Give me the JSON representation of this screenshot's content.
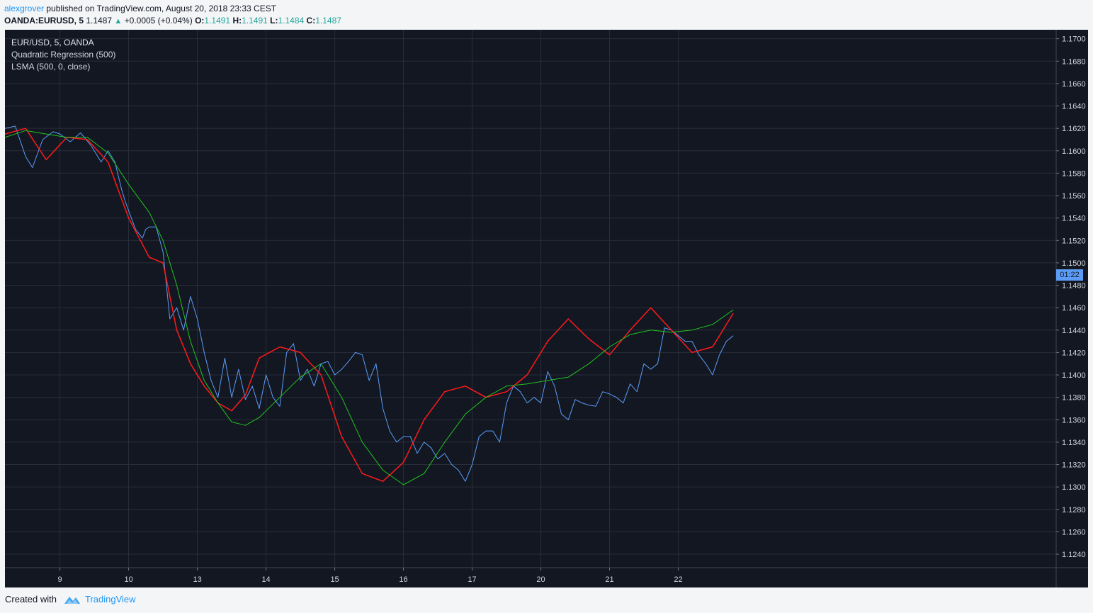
{
  "header": {
    "author": "alexgrover",
    "published": " published on TradingView.com, August 20, 2018 23:33 CEST",
    "symbol": "OANDA:EURUSD, 5",
    "last": "1.1487",
    "change": "+0.0005 (+0.04%)",
    "o_label": "O:",
    "o_val": "1.1491",
    "h_label": "H:",
    "h_val": "1.1491",
    "l_label": "L:",
    "l_val": "1.1484",
    "c_label": "C:",
    "c_val": "1.1487"
  },
  "legend": {
    "symbol": "EUR/USD, 5, OANDA",
    "ind1": "Quadratic Regression (500)",
    "ind2": "LSMA (500, 0, close)"
  },
  "price_tag": "01:22",
  "footer": {
    "created": "Created with",
    "brand": "TradingView"
  },
  "colors": {
    "background": "#131722",
    "grid": "#2a2e39",
    "price": "#5b9cf6",
    "quadratic_regression": "#ff1a1a",
    "lsma": "#1fc41f",
    "axis_text": "#d1d4dc"
  },
  "chart_data": {
    "type": "line",
    "title": "EUR/USD, 5, OANDA",
    "x_ticks": [
      "9",
      "10",
      "13",
      "14",
      "15",
      "16",
      "17",
      "20",
      "21",
      "22"
    ],
    "y_ticks": [
      "1.1700",
      "1.1680",
      "1.1660",
      "1.1640",
      "1.1620",
      "1.1600",
      "1.1580",
      "1.1560",
      "1.1540",
      "1.1520",
      "1.1500",
      "1.1480",
      "1.1460",
      "1.1440",
      "1.1420",
      "1.1400",
      "1.1380",
      "1.1360",
      "1.1340",
      "1.1320",
      "1.1300",
      "1.1280",
      "1.1260",
      "1.1240"
    ],
    "ylim": [
      1.1228,
      1.1708
    ],
    "xlim": [
      8.2,
      23.5
    ],
    "grid": true,
    "series": [
      {
        "name": "EUR/USD",
        "x": [
          8.2,
          8.35,
          8.5,
          8.6,
          8.75,
          8.9,
          9.0,
          9.15,
          9.3,
          9.45,
          9.6,
          9.7,
          9.8,
          9.9,
          9.95,
          10.1,
          10.2,
          10.25,
          10.3,
          10.4,
          10.5,
          10.6,
          10.7,
          10.8,
          10.9,
          11.0,
          11.1,
          11.2,
          11.3,
          11.4,
          11.5,
          11.6,
          11.7,
          11.8,
          11.9,
          12.0,
          12.1,
          12.2,
          12.3,
          12.4,
          12.5,
          12.6,
          12.7,
          12.8,
          12.9,
          13.0,
          13.1,
          13.2,
          13.3,
          13.4,
          13.5,
          13.6,
          13.7,
          13.8,
          13.9,
          14.0,
          14.1,
          14.2,
          14.3,
          14.4,
          14.5,
          14.6,
          14.7,
          14.8,
          14.9,
          15.0,
          15.1,
          15.2,
          15.3,
          15.4,
          15.5,
          15.6,
          15.7,
          15.8,
          15.9,
          16.0,
          16.1,
          16.2,
          16.3,
          16.4,
          16.5,
          16.6,
          16.7,
          16.8,
          16.9,
          17.0,
          17.1,
          17.2,
          17.3,
          17.4,
          17.5,
          17.6,
          17.7,
          17.8,
          17.9,
          18.0,
          18.1,
          18.2,
          18.3,
          18.4,
          18.5,
          18.6,
          18.7,
          18.8
        ],
        "values": [
          1.162,
          1.1622,
          1.1595,
          1.1585,
          1.161,
          1.1617,
          1.1615,
          1.1608,
          1.1616,
          1.1605,
          1.159,
          1.16,
          1.159,
          1.1565,
          1.1555,
          1.153,
          1.1522,
          1.153,
          1.1532,
          1.1532,
          1.151,
          1.145,
          1.146,
          1.144,
          1.147,
          1.145,
          1.142,
          1.1395,
          1.138,
          1.1415,
          1.138,
          1.1405,
          1.1378,
          1.139,
          1.137,
          1.14,
          1.138,
          1.1372,
          1.142,
          1.1428,
          1.1395,
          1.1405,
          1.139,
          1.141,
          1.1412,
          1.14,
          1.1405,
          1.1412,
          1.142,
          1.1418,
          1.1395,
          1.141,
          1.137,
          1.135,
          1.134,
          1.1345,
          1.1345,
          1.133,
          1.134,
          1.1335,
          1.1325,
          1.133,
          1.132,
          1.1315,
          1.1305,
          1.132,
          1.1345,
          1.135,
          1.135,
          1.134,
          1.1375,
          1.139,
          1.1385,
          1.1375,
          1.138,
          1.1375,
          1.1403,
          1.139,
          1.1365,
          1.136,
          1.1378,
          1.1375,
          1.1373,
          1.1372,
          1.1385,
          1.1383,
          1.138,
          1.1375,
          1.1392,
          1.1385,
          1.141,
          1.1405,
          1.141,
          1.1442,
          1.144,
          1.1435,
          1.143,
          1.143,
          1.1418,
          1.141,
          1.14,
          1.1418,
          1.143,
          1.1435
        ]
      },
      {
        "name": "Quadratic Regression (500)",
        "x": [
          8.2,
          8.5,
          8.8,
          9.1,
          9.4,
          9.7,
          10.0,
          10.3,
          10.5,
          10.7,
          10.9,
          11.1,
          11.3,
          11.5,
          11.7,
          11.9,
          12.2,
          12.5,
          12.8,
          13.1,
          13.4,
          13.7,
          14.0,
          14.3,
          14.6,
          14.9,
          15.2,
          15.5,
          15.8,
          16.1,
          16.4,
          16.7,
          17.0,
          17.3,
          17.6,
          17.9,
          18.2,
          18.5,
          18.8
        ],
        "values": [
          1.1615,
          1.162,
          1.1592,
          1.1612,
          1.161,
          1.159,
          1.154,
          1.1505,
          1.15,
          1.144,
          1.141,
          1.139,
          1.1375,
          1.1368,
          1.1382,
          1.1415,
          1.1425,
          1.142,
          1.14,
          1.1345,
          1.1312,
          1.1305,
          1.1322,
          1.136,
          1.1385,
          1.139,
          1.138,
          1.1385,
          1.14,
          1.143,
          1.145,
          1.1432,
          1.1418,
          1.144,
          1.146,
          1.144,
          1.142,
          1.1425,
          1.1455
        ]
      },
      {
        "name": "LSMA (500, 0, close)",
        "x": [
          8.2,
          8.5,
          8.8,
          9.1,
          9.4,
          9.7,
          10.0,
          10.3,
          10.5,
          10.7,
          10.9,
          11.1,
          11.3,
          11.5,
          11.7,
          11.9,
          12.2,
          12.5,
          12.8,
          13.1,
          13.4,
          13.7,
          14.0,
          14.3,
          14.6,
          14.9,
          15.2,
          15.5,
          15.8,
          16.1,
          16.4,
          16.7,
          17.0,
          17.3,
          17.6,
          17.9,
          18.2,
          18.5,
          18.8
        ],
        "values": [
          1.1612,
          1.1618,
          1.1615,
          1.1612,
          1.1612,
          1.1598,
          1.157,
          1.1545,
          1.152,
          1.148,
          1.143,
          1.1395,
          1.1375,
          1.1358,
          1.1355,
          1.1362,
          1.138,
          1.1398,
          1.141,
          1.138,
          1.134,
          1.1315,
          1.1302,
          1.1312,
          1.134,
          1.1365,
          1.138,
          1.139,
          1.1392,
          1.1395,
          1.1398,
          1.141,
          1.1425,
          1.1436,
          1.144,
          1.1438,
          1.144,
          1.1445,
          1.1458
        ]
      }
    ]
  }
}
